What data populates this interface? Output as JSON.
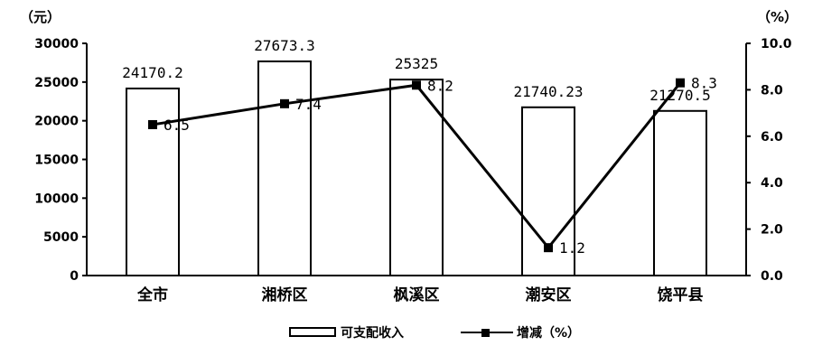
{
  "chart_data": {
    "type": "bar",
    "title": "",
    "categories": [
      "全市",
      "湘桥区",
      "枫溪区",
      "潮安区",
      "饶平县"
    ],
    "series": [
      {
        "name": "可支配收入",
        "type": "bar",
        "axis": "left",
        "values": [
          24170.2,
          27673.3,
          25325,
          21740.23,
          21270.5
        ],
        "labels": [
          "24170.2",
          "27673.3",
          "25325",
          "21740.23",
          "21270.5"
        ]
      },
      {
        "name": "增减（%）",
        "type": "line",
        "axis": "right",
        "values": [
          6.5,
          7.4,
          8.2,
          1.2,
          8.3
        ],
        "labels": [
          "6.5",
          "7.4",
          "8.2",
          "1.2",
          "8.3"
        ]
      }
    ],
    "y_left": {
      "unit_label": "（元）",
      "ylim": [
        0,
        30000
      ],
      "ticks": [
        "0",
        "5000",
        "10000",
        "15000",
        "20000",
        "25000",
        "30000"
      ]
    },
    "y_right": {
      "unit_label": "（%）",
      "ylim": [
        0,
        10
      ],
      "ticks": [
        "0.0",
        "2.0",
        "4.0",
        "6.0",
        "8.0",
        "10.0"
      ]
    },
    "grid": false,
    "legend_position": "bottom",
    "colors": {
      "bar_fill": "#ffffff",
      "bar_stroke": "#000000",
      "line": "#000000"
    }
  }
}
